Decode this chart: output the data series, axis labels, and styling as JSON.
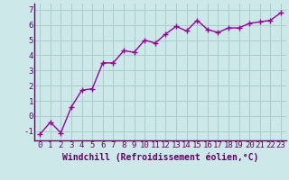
{
  "x": [
    0,
    1,
    2,
    3,
    4,
    5,
    6,
    7,
    8,
    9,
    10,
    11,
    12,
    13,
    14,
    15,
    16,
    17,
    18,
    19,
    20,
    21,
    22,
    23
  ],
  "y": [
    -1.2,
    -0.4,
    -1.1,
    0.6,
    1.7,
    1.8,
    3.5,
    3.5,
    4.3,
    4.2,
    5.0,
    4.8,
    5.4,
    5.9,
    5.6,
    6.3,
    5.7,
    5.5,
    5.8,
    5.8,
    6.1,
    6.2,
    6.3,
    6.8
  ],
  "line_color": "#990099",
  "marker": "+",
  "marker_size": 4,
  "marker_lw": 1.0,
  "line_width": 1.0,
  "bg_color": "#cce8e8",
  "grid_color": "#aacccc",
  "xlabel": "Windchill (Refroidissement éolien,°C)",
  "xlabel_color": "#660066",
  "xlabel_fontsize": 7,
  "tick_color": "#660066",
  "tick_fontsize": 6.5,
  "ylim": [
    -1.6,
    7.4
  ],
  "xlim": [
    -0.5,
    23.5
  ],
  "yticks": [
    -1,
    0,
    1,
    2,
    3,
    4,
    5,
    6,
    7
  ],
  "xticks": [
    0,
    1,
    2,
    3,
    4,
    5,
    6,
    7,
    8,
    9,
    10,
    11,
    12,
    13,
    14,
    15,
    16,
    17,
    18,
    19,
    20,
    21,
    22,
    23
  ],
  "spine_color": "#660066"
}
